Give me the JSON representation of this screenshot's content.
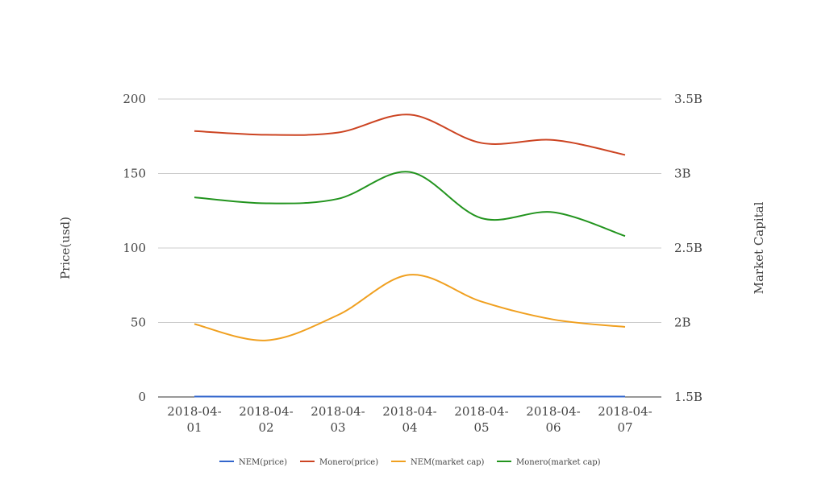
{
  "chart_data": {
    "type": "line",
    "title": "",
    "categories": [
      "2018-04-01",
      "2018-04-02",
      "2018-04-03",
      "2018-04-04",
      "2018-04-05",
      "2018-04-06",
      "2018-04-07"
    ],
    "category_lines": [
      [
        "2018-04-",
        "01"
      ],
      [
        "2018-04-",
        "02"
      ],
      [
        "2018-04-",
        "03"
      ],
      [
        "2018-04-",
        "04"
      ],
      [
        "2018-04-",
        "05"
      ],
      [
        "2018-04-",
        "06"
      ],
      [
        "2018-04-",
        "07"
      ]
    ],
    "y_left": {
      "label": "Price(usd)",
      "ylim": [
        0,
        200
      ],
      "ticks": [
        0,
        50,
        100,
        150,
        200
      ],
      "tick_labels": [
        "0",
        "50",
        "100",
        "150",
        "200"
      ]
    },
    "y_right": {
      "label": "Market Capital",
      "ylim": [
        1500000000,
        3500000000
      ],
      "ticks": [
        1500000000,
        2000000000,
        2500000000,
        3000000000,
        3500000000
      ],
      "tick_labels": [
        "1.5B",
        "2B",
        "2.5B",
        "3B",
        "3.5B"
      ]
    },
    "grid": true,
    "legend_position": "bottom",
    "series": [
      {
        "name": "NEM(price)",
        "axis": "left",
        "color": "#3366cc",
        "values": [
          0.24,
          0.23,
          0.25,
          0.29,
          0.26,
          0.24,
          0.24
        ]
      },
      {
        "name": "Monero(price)",
        "axis": "left",
        "color": "#cc4422",
        "values": [
          178.5,
          176,
          177.5,
          189.5,
          170.5,
          172.5,
          162.5
        ]
      },
      {
        "name": "NEM(market cap)",
        "axis": "right",
        "color": "#f0a020",
        "values": [
          1990000000,
          1880000000,
          2050000000,
          2320000000,
          2140000000,
          2020000000,
          1970000000
        ]
      },
      {
        "name": "Monero(market cap)",
        "axis": "right",
        "color": "#22941e",
        "values": [
          2840000000,
          2800000000,
          2830000000,
          3010000000,
          2700000000,
          2740000000,
          2580000000
        ]
      }
    ]
  }
}
